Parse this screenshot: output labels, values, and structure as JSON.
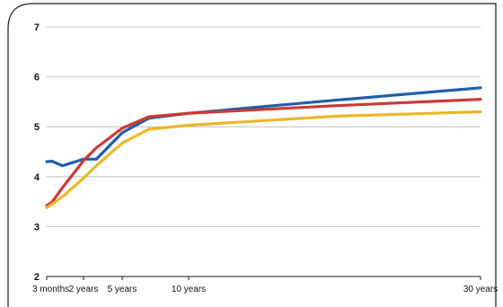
{
  "chart_data": {
    "type": "line",
    "x": [
      0.25,
      0.5,
      1,
      2,
      3,
      5,
      7,
      10,
      20,
      30
    ],
    "x_tick_labels": [
      "3 months",
      "2 years",
      "5 years",
      "10 years",
      "30 years"
    ],
    "x_tick_values": [
      0.25,
      2,
      5,
      10,
      30
    ],
    "ylim": [
      2,
      7
    ],
    "y_ticks": [
      2,
      3,
      4,
      5,
      6,
      7
    ],
    "grid": "horizontal",
    "series": [
      {
        "color": "#1f5fa8",
        "values": [
          4.3,
          4.31,
          4.22,
          4.35,
          4.35,
          4.88,
          5.17,
          5.27,
          5.53,
          5.78
        ]
      },
      {
        "color": "#cc3a36",
        "values": [
          3.42,
          3.49,
          3.78,
          4.32,
          4.58,
          4.97,
          5.2,
          5.27,
          5.42,
          5.55
        ]
      },
      {
        "color": "#e8b92a",
        "values": [
          3.38,
          3.45,
          3.6,
          3.97,
          4.22,
          4.67,
          4.95,
          5.03,
          5.21,
          5.3
        ]
      }
    ]
  }
}
